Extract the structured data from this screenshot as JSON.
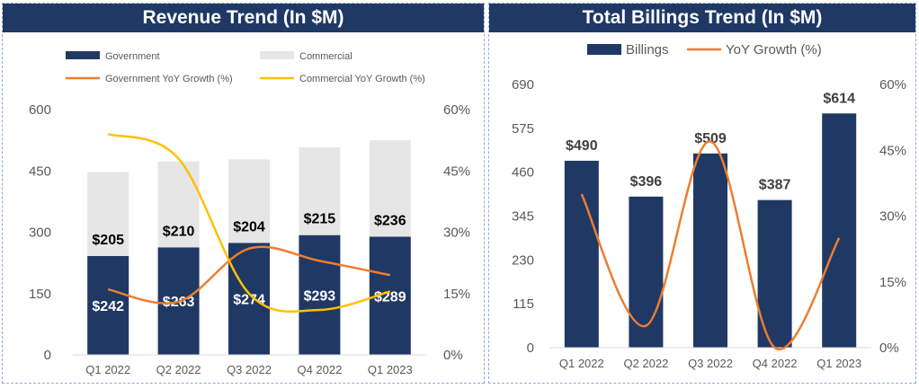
{
  "colors": {
    "navy": "#1f3864",
    "bar_dark": "#203864",
    "bar_light": "#e7e6e6",
    "orange": "#ed7d31",
    "gold": "#ffc000",
    "axis_text": "#595959"
  },
  "chart_data": [
    {
      "type": "bar",
      "stacked": true,
      "title": "Revenue Trend (In $M)",
      "categories": [
        "Q1 2022",
        "Q2 2022",
        "Q3 2022",
        "Q4 2022",
        "Q1 2023"
      ],
      "series": [
        {
          "name": "Government",
          "kind": "bar",
          "values": [
            242,
            263,
            274,
            293,
            289
          ],
          "labels": [
            "$242",
            "$263",
            "$274",
            "$293",
            "$289"
          ]
        },
        {
          "name": "Commercial",
          "kind": "bar",
          "values": [
            205,
            210,
            204,
            215,
            236
          ],
          "labels": [
            "$205",
            "$210",
            "$204",
            "$215",
            "$236"
          ]
        },
        {
          "name": "Government YoY Growth (%)",
          "kind": "line",
          "axis": "right",
          "values": [
            16,
            13,
            26,
            23,
            19.5
          ]
        },
        {
          "name": "Commercial YoY Growth (%)",
          "kind": "line",
          "axis": "right",
          "values": [
            54,
            48,
            15,
            11,
            15.5
          ]
        }
      ],
      "ylim": [
        0,
        600
      ],
      "yticks": [
        "0",
        "150",
        "300",
        "450",
        "600"
      ],
      "y2lim": [
        0,
        60
      ],
      "y2ticks": [
        "0%",
        "15%",
        "30%",
        "45%",
        "60%"
      ],
      "legend": "top"
    },
    {
      "type": "bar",
      "title": "Total Billings Trend (In $M)",
      "categories": [
        "Q1 2022",
        "Q2 2022",
        "Q3 2022",
        "Q4 2022",
        "Q1 2023"
      ],
      "series": [
        {
          "name": "Billings",
          "kind": "bar",
          "values": [
            490,
            396,
            509,
            387,
            614
          ],
          "labels": [
            "$490",
            "$396",
            "$509",
            "$387",
            "$614"
          ]
        },
        {
          "name": "YoY Growth (%)",
          "kind": "line",
          "axis": "right",
          "values": [
            35,
            5,
            47,
            0,
            25
          ]
        }
      ],
      "ylim": [
        0,
        690
      ],
      "yticks": [
        "0",
        "115",
        "230",
        "345",
        "460",
        "575",
        "690"
      ],
      "y2lim": [
        0,
        60
      ],
      "y2ticks": [
        "0%",
        "15%",
        "30%",
        "45%",
        "60%"
      ],
      "legend": "top"
    }
  ]
}
